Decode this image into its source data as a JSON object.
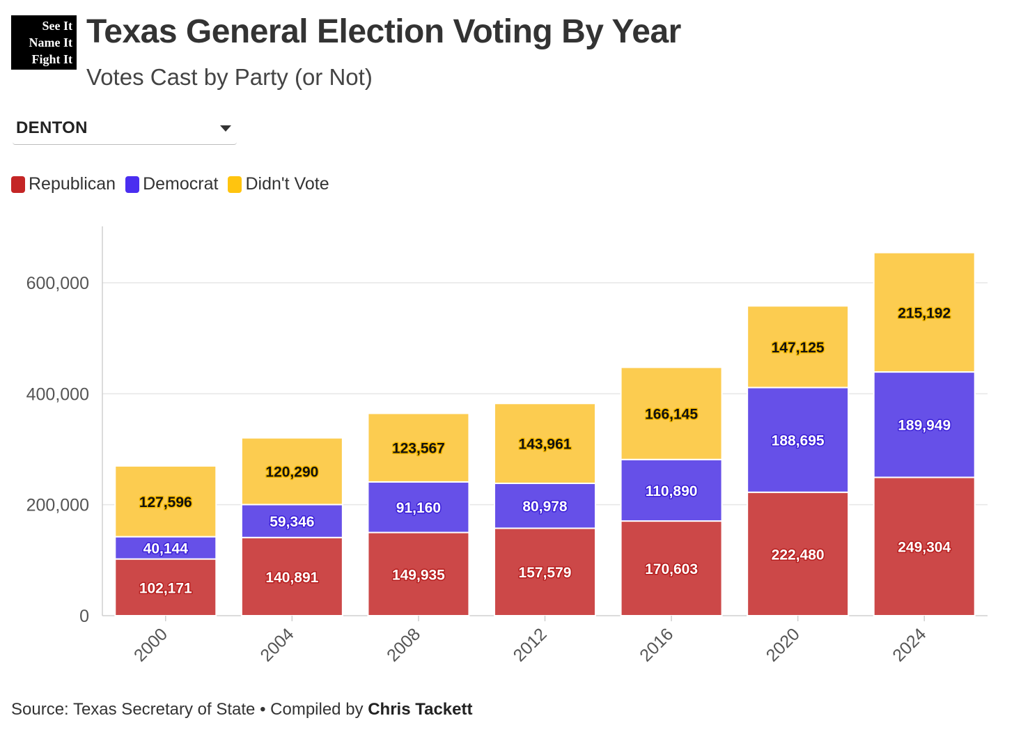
{
  "logo": {
    "lines": [
      "See It",
      "Name It",
      "Fight It"
    ]
  },
  "header": {
    "title": "Texas General Election Voting By Year",
    "subtitle": "Votes Cast by Party (or Not)"
  },
  "filter": {
    "selected": "DENTON"
  },
  "footer": {
    "source_prefix": "Source: Texas Secretary of State • Compiled by ",
    "author": "Chris Tackett"
  },
  "colors": {
    "republican": "#cc4848",
    "democrat": "#6650e8",
    "didnt_vote": "#fccc50",
    "legend_republican": "#c42525",
    "legend_democrat": "#4a2ef0",
    "legend_didnt_vote": "#ffc40f",
    "grid": "#e6e6e6",
    "axis": "#cfcfcf"
  },
  "chart_data": {
    "type": "bar",
    "stacked": true,
    "categories": [
      "2000",
      "2004",
      "2008",
      "2012",
      "2016",
      "2020",
      "2024"
    ],
    "series": [
      {
        "name": "Republican",
        "values": [
          102171,
          140891,
          149935,
          157579,
          170603,
          222480,
          249304
        ]
      },
      {
        "name": "Democrat",
        "values": [
          40144,
          59346,
          91160,
          80978,
          110890,
          188695,
          189949
        ]
      },
      {
        "name": "Didn't Vote",
        "values": [
          127596,
          120290,
          123567,
          143961,
          166145,
          147125,
          215192
        ]
      }
    ],
    "data_labels": {
      "Republican": [
        "102,171",
        "140,891",
        "149,935",
        "157,579",
        "170,603",
        "222,480",
        "249,304"
      ],
      "Democrat": [
        "40,144",
        "59,346",
        "91,160",
        "80,978",
        "110,890",
        "188,695",
        "189,949"
      ],
      "Didn't Vote": [
        "127,596",
        "120,290",
        "123,567",
        "143,961",
        "166,145",
        "147,125",
        "215,192"
      ]
    },
    "y_ticks": [
      0,
      200000,
      400000,
      600000
    ],
    "y_tick_labels": [
      "0",
      "200,000",
      "400,000",
      "600,000"
    ],
    "ylim": [
      0,
      700000
    ],
    "grid": true,
    "legend_position": "top-left",
    "xlabel": "",
    "ylabel": ""
  }
}
